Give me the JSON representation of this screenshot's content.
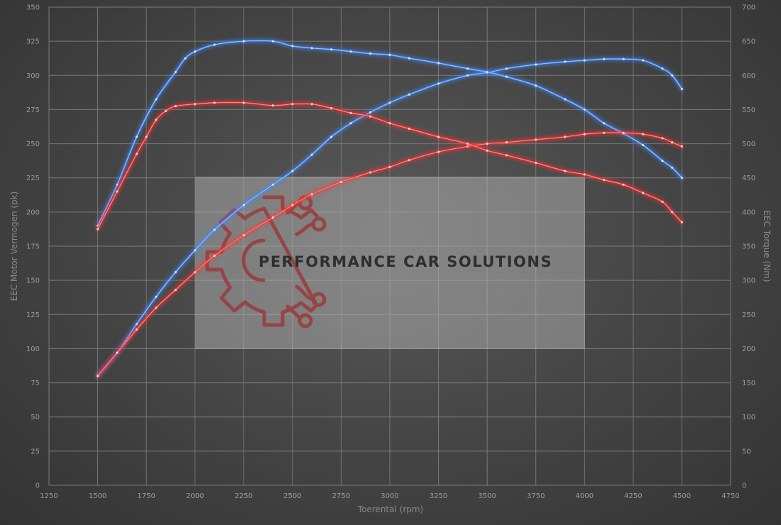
{
  "chart_data": {
    "type": "line",
    "xlabel": "Toerental (rpm)",
    "ylabel_left": "EEC Motor Vermogen (pk)",
    "ylabel_right": "EEC Torque (Nm)",
    "xlim": [
      1250,
      4750
    ],
    "ylim_left": [
      0,
      350
    ],
    "ylim_right": [
      0,
      700
    ],
    "x_ticks": [
      1250,
      1500,
      1750,
      2000,
      2250,
      2500,
      2750,
      3000,
      3250,
      3500,
      3750,
      4000,
      4250,
      4500,
      4750
    ],
    "y_ticks_left": [
      0,
      25,
      50,
      75,
      100,
      125,
      150,
      175,
      200,
      225,
      250,
      275,
      300,
      325,
      350
    ],
    "y_ticks_right": [
      0,
      50,
      100,
      150,
      200,
      250,
      300,
      350,
      400,
      450,
      500,
      550,
      600,
      650,
      700
    ],
    "grid": true,
    "legend": "none",
    "series": [
      {
        "axis": "left",
        "color": "#3f8cff",
        "x": [
          1500,
          1600,
          1700,
          1800,
          1900,
          2000,
          2100,
          2250,
          2400,
          2500,
          2600,
          2700,
          2800,
          2900,
          3000,
          3100,
          3250,
          3400,
          3500,
          3600,
          3750,
          3900,
          4000,
          4100,
          4200,
          4300,
          4400,
          4450,
          4500
        ],
        "values": [
          80,
          97,
          118,
          138,
          156,
          172,
          187,
          205,
          220,
          230,
          242,
          255,
          265,
          273,
          280,
          286,
          294,
          300,
          302,
          305,
          308,
          310,
          311,
          312,
          312,
          311,
          305,
          300,
          290
        ]
      },
      {
        "axis": "right",
        "color": "#3f8cff",
        "x": [
          1500,
          1600,
          1700,
          1800,
          1900,
          1950,
          2000,
          2100,
          2250,
          2400,
          2500,
          2600,
          2700,
          2800,
          2900,
          3000,
          3100,
          3250,
          3400,
          3500,
          3600,
          3750,
          3900,
          4000,
          4100,
          4200,
          4300,
          4400,
          4450,
          4500
        ],
        "values": [
          380,
          440,
          510,
          565,
          605,
          625,
          635,
          645,
          650,
          650,
          643,
          640,
          638,
          635,
          632,
          630,
          625,
          618,
          610,
          605,
          598,
          585,
          565,
          550,
          530,
          515,
          498,
          475,
          465,
          450
        ]
      },
      {
        "axis": "left",
        "color": "#ff3030",
        "x": [
          1500,
          1600,
          1700,
          1800,
          1900,
          2000,
          2100,
          2250,
          2400,
          2500,
          2600,
          2750,
          2900,
          3000,
          3100,
          3250,
          3400,
          3500,
          3600,
          3750,
          3900,
          4000,
          4100,
          4200,
          4300,
          4400,
          4450,
          4500
        ],
        "values": [
          80,
          97,
          114,
          130,
          143,
          156,
          168,
          183,
          196,
          205,
          213,
          222,
          229,
          233,
          238,
          244,
          248,
          250,
          251,
          253,
          255,
          257,
          258,
          258,
          257,
          254,
          251,
          248
        ]
      },
      {
        "axis": "right",
        "color": "#ff3030",
        "x": [
          1500,
          1600,
          1700,
          1750,
          1800,
          1850,
          1900,
          2000,
          2100,
          2250,
          2400,
          2500,
          2600,
          2700,
          2800,
          2900,
          3000,
          3100,
          3250,
          3400,
          3500,
          3600,
          3750,
          3900,
          4000,
          4100,
          4200,
          4300,
          4400,
          4450,
          4500
        ],
        "values": [
          375,
          430,
          485,
          510,
          535,
          548,
          555,
          558,
          560,
          560,
          556,
          558,
          558,
          552,
          545,
          540,
          530,
          522,
          510,
          500,
          490,
          483,
          472,
          460,
          455,
          447,
          440,
          428,
          415,
          400,
          385
        ]
      }
    ]
  },
  "watermark": {
    "text": "PERFORMANCE CAR SOLUTIONS",
    "logo_icon": "gear-circuit-logo-icon",
    "logo_color": "#9b3a3a"
  }
}
